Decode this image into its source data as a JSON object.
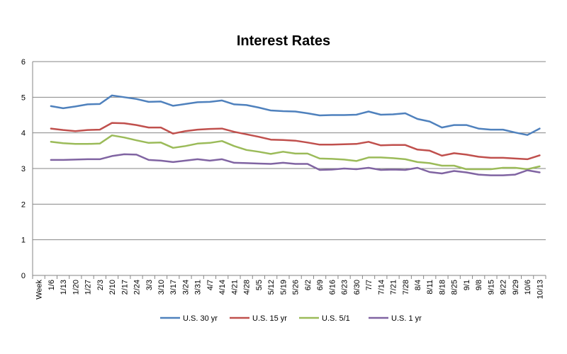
{
  "chart_data": {
    "type": "line",
    "title": "Interest Rates",
    "xlabel": "",
    "ylabel": "",
    "ylim": [
      0,
      6
    ],
    "yticks": [
      0,
      1,
      2,
      3,
      4,
      5,
      6
    ],
    "grid": true,
    "legend_position": "bottom",
    "first_category_label": "Week",
    "categories": [
      "1/6",
      "1/13",
      "1/20",
      "1/27",
      "2/3",
      "2/10",
      "2/17",
      "2/24",
      "3/3",
      "3/10",
      "3/17",
      "3/24",
      "3/31",
      "4/7",
      "4/14",
      "4/21",
      "4/28",
      "5/5",
      "5/12",
      "5/19",
      "5/26",
      "6/2",
      "6/9",
      "6/16",
      "6/23",
      "6/30",
      "7/7",
      "7/14",
      "7/21",
      "7/28",
      "8/4",
      "8/11",
      "8/18",
      "8/25",
      "9/1",
      "9/8",
      "9/15",
      "9/22",
      "9/29",
      "10/6",
      "10/13"
    ],
    "series": [
      {
        "name": "U.S. 30 yr",
        "color": "#4f81bd",
        "values": [
          4.75,
          4.69,
          4.74,
          4.8,
          4.81,
          5.05,
          5.0,
          4.95,
          4.87,
          4.88,
          4.76,
          4.81,
          4.86,
          4.87,
          4.91,
          4.8,
          4.78,
          4.71,
          4.63,
          4.61,
          4.6,
          4.55,
          4.49,
          4.5,
          4.5,
          4.51,
          4.6,
          4.51,
          4.52,
          4.55,
          4.39,
          4.32,
          4.15,
          4.22,
          4.22,
          4.12,
          4.09,
          4.09,
          4.01,
          3.94,
          4.12
        ]
      },
      {
        "name": "U.S. 15 yr",
        "color": "#c0504d",
        "values": [
          4.12,
          4.08,
          4.05,
          4.08,
          4.09,
          4.28,
          4.27,
          4.22,
          4.15,
          4.15,
          3.98,
          4.05,
          4.09,
          4.11,
          4.12,
          4.03,
          3.96,
          3.89,
          3.81,
          3.8,
          3.78,
          3.73,
          3.67,
          3.67,
          3.68,
          3.69,
          3.75,
          3.65,
          3.66,
          3.66,
          3.53,
          3.5,
          3.36,
          3.43,
          3.39,
          3.33,
          3.3,
          3.3,
          3.28,
          3.26,
          3.37
        ]
      },
      {
        "name": "U.S. 5/1",
        "color": "#9bbb59",
        "values": [
          3.75,
          3.71,
          3.69,
          3.69,
          3.7,
          3.93,
          3.87,
          3.79,
          3.72,
          3.73,
          3.58,
          3.63,
          3.7,
          3.72,
          3.77,
          3.63,
          3.52,
          3.47,
          3.41,
          3.47,
          3.42,
          3.42,
          3.28,
          3.27,
          3.25,
          3.21,
          3.31,
          3.31,
          3.29,
          3.26,
          3.18,
          3.15,
          3.08,
          3.08,
          2.98,
          2.98,
          2.98,
          3.02,
          3.02,
          2.98,
          3.06
        ]
      },
      {
        "name": "U.S. 1 yr",
        "color": "#8064a2",
        "values": [
          3.24,
          3.24,
          3.25,
          3.26,
          3.26,
          3.35,
          3.4,
          3.39,
          3.24,
          3.22,
          3.18,
          3.22,
          3.26,
          3.22,
          3.26,
          3.16,
          3.15,
          3.14,
          3.13,
          3.16,
          3.13,
          3.13,
          2.96,
          2.97,
          3.0,
          2.98,
          3.02,
          2.96,
          2.97,
          2.96,
          3.02,
          2.9,
          2.86,
          2.93,
          2.89,
          2.83,
          2.81,
          2.81,
          2.83,
          2.95,
          2.89
        ]
      }
    ]
  }
}
